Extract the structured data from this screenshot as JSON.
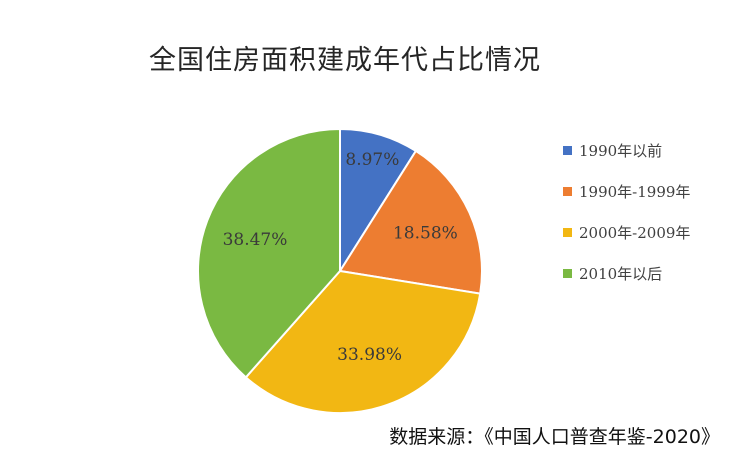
{
  "chart_data": {
    "type": "pie",
    "title": "全国住房面积建成年代占比情况",
    "categories": [
      "1990年以前",
      "1990年-1999年",
      "2000年-2009年",
      "2010年以后"
    ],
    "values": [
      8.97,
      18.58,
      33.98,
      38.47
    ],
    "labels": [
      "8.97%",
      "18.58%",
      "33.98%",
      "38.47%"
    ],
    "colors": [
      "#4472C4",
      "#ED7D31",
      "#F2B713",
      "#7AB942"
    ],
    "legend": "right",
    "start_angle": "12 o'clock, clockwise"
  },
  "note": "数据来源：《中国人口普查年鉴-2020》"
}
